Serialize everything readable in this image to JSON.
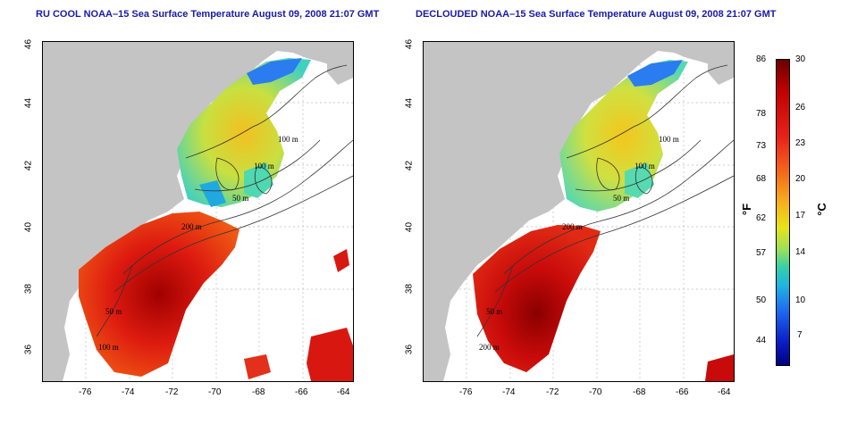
{
  "panels": [
    {
      "title": "RU COOL NOAA–15 Sea Surface Temperature August 09, 2008 21:07 GMT"
    },
    {
      "title": "DECLOUDED NOAA–15 Sea Surface Temperature August 09, 2008 21:07 GMT"
    }
  ],
  "axes": {
    "x_ticks": [
      "-76",
      "-74",
      "-72",
      "-70",
      "-68",
      "-66",
      "-64"
    ],
    "y_ticks": [
      "46",
      "44",
      "42",
      "40",
      "38",
      "36"
    ]
  },
  "contour_labels": {
    "p1": [
      "100 m",
      "100 m",
      "50 m",
      "200 m",
      "50 m",
      "100 m"
    ],
    "p2": [
      "100 m",
      "100 m",
      "50 m",
      "200 m",
      "50 m",
      "200 m"
    ]
  },
  "colorbar": {
    "f_ticks": [
      "86",
      "78",
      "73",
      "68",
      "62",
      "57",
      "50",
      "44"
    ],
    "c_ticks": [
      "30",
      "26",
      "23",
      "20",
      "17",
      "14",
      "10",
      "7"
    ],
    "f_unit": "°F",
    "c_unit": "°C",
    "colors": [
      "#6a0000",
      "#e8201a",
      "#f6b21c",
      "#e8e418",
      "#36d0a8",
      "#20b4e0",
      "#0a20c8"
    ]
  }
}
